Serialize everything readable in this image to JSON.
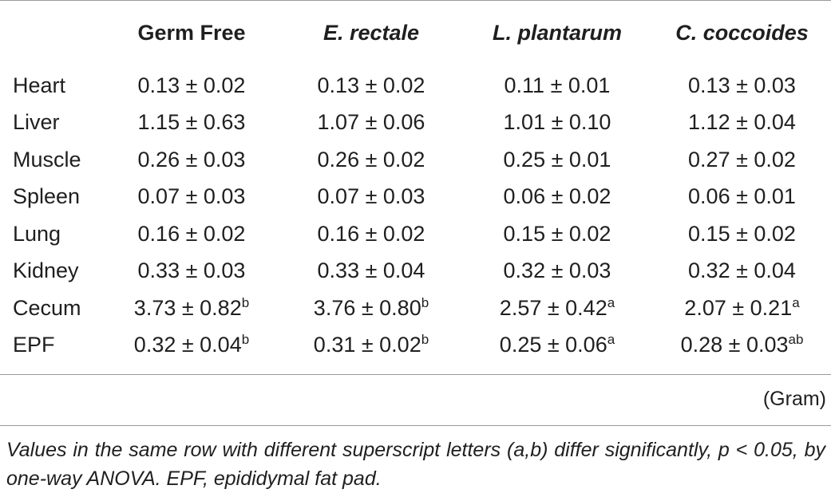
{
  "table": {
    "columns": [
      "",
      "Germ Free",
      "E. rectale",
      "L. plantarum",
      "C. coccoides"
    ],
    "rows": [
      {
        "label": "Heart",
        "cells": [
          {
            "value": "0.13 ± 0.02",
            "sup": ""
          },
          {
            "value": "0.13 ± 0.02",
            "sup": ""
          },
          {
            "value": "0.11 ± 0.01",
            "sup": ""
          },
          {
            "value": "0.13 ± 0.03",
            "sup": ""
          }
        ]
      },
      {
        "label": "Liver",
        "cells": [
          {
            "value": "1.15 ± 0.63",
            "sup": ""
          },
          {
            "value": "1.07 ± 0.06",
            "sup": ""
          },
          {
            "value": "1.01 ± 0.10",
            "sup": ""
          },
          {
            "value": "1.12 ± 0.04",
            "sup": ""
          }
        ]
      },
      {
        "label": "Muscle",
        "cells": [
          {
            "value": "0.26 ± 0.03",
            "sup": ""
          },
          {
            "value": "0.26 ± 0.02",
            "sup": ""
          },
          {
            "value": "0.25 ± 0.01",
            "sup": ""
          },
          {
            "value": "0.27 ± 0.02",
            "sup": ""
          }
        ]
      },
      {
        "label": "Spleen",
        "cells": [
          {
            "value": "0.07 ± 0.03",
            "sup": ""
          },
          {
            "value": "0.07 ± 0.03",
            "sup": ""
          },
          {
            "value": "0.06 ± 0.02",
            "sup": ""
          },
          {
            "value": "0.06 ± 0.01",
            "sup": ""
          }
        ]
      },
      {
        "label": "Lung",
        "cells": [
          {
            "value": "0.16 ± 0.02",
            "sup": ""
          },
          {
            "value": "0.16 ± 0.02",
            "sup": ""
          },
          {
            "value": "0.15 ± 0.02",
            "sup": ""
          },
          {
            "value": "0.15 ± 0.02",
            "sup": ""
          }
        ]
      },
      {
        "label": "Kidney",
        "cells": [
          {
            "value": "0.33 ± 0.03",
            "sup": ""
          },
          {
            "value": "0.33 ± 0.04",
            "sup": ""
          },
          {
            "value": "0.32 ± 0.03",
            "sup": ""
          },
          {
            "value": "0.32 ± 0.04",
            "sup": ""
          }
        ]
      },
      {
        "label": "Cecum",
        "cells": [
          {
            "value": "3.73 ± 0.82",
            "sup": "b"
          },
          {
            "value": "3.76 ± 0.80",
            "sup": "b"
          },
          {
            "value": "2.57 ± 0.42",
            "sup": "a"
          },
          {
            "value": "2.07 ± 0.21",
            "sup": "a"
          }
        ]
      },
      {
        "label": "EPF",
        "cells": [
          {
            "value": "0.32 ± 0.04",
            "sup": "b"
          },
          {
            "value": "0.31 ± 0.02",
            "sup": "b"
          },
          {
            "value": "0.25 ± 0.06",
            "sup": "a"
          },
          {
            "value": "0.28 ± 0.03",
            "sup": "ab"
          }
        ]
      }
    ],
    "unit": "(Gram)"
  },
  "footnote": "Values in the same row with different superscript letters (a,b) differ significantly, p < 0.05, by one-way ANOVA. EPF, epididymal fat pad."
}
